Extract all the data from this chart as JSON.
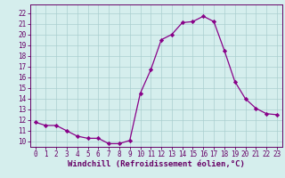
{
  "x": [
    0,
    1,
    2,
    3,
    4,
    5,
    6,
    7,
    8,
    9,
    10,
    11,
    12,
    13,
    14,
    15,
    16,
    17,
    18,
    19,
    20,
    21,
    22,
    23
  ],
  "y": [
    11.8,
    11.5,
    11.5,
    11.0,
    10.5,
    10.3,
    10.3,
    9.8,
    9.8,
    10.1,
    14.5,
    16.7,
    19.5,
    20.0,
    21.1,
    21.2,
    21.7,
    21.2,
    18.5,
    15.6,
    14.0,
    13.1,
    12.6,
    12.5
  ],
  "line_color": "#880088",
  "marker": "D",
  "marker_size": 2.2,
  "bg_color": "#d5eeed",
  "grid_color": "#aacfcf",
  "xlabel": "Windchill (Refroidissement éolien,°C)",
  "ylabel_ticks": [
    10,
    11,
    12,
    13,
    14,
    15,
    16,
    17,
    18,
    19,
    20,
    21,
    22
  ],
  "ylim": [
    9.5,
    22.8
  ],
  "xlim": [
    -0.5,
    23.5
  ],
  "font_color": "#660066",
  "tick_fontsize": 5.5,
  "label_fontsize": 6.5
}
